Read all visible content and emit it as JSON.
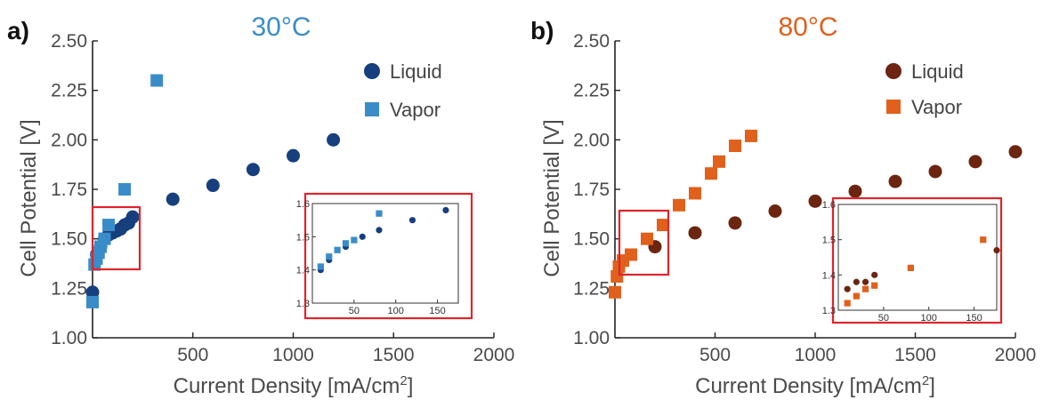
{
  "chart_data": [
    {
      "type": "scatter",
      "panel_label": "a)",
      "title": "30°C",
      "title_color": "#3a8cc8",
      "xlabel": "Current Density [mA/cm",
      "xlabel_sup": "2",
      "xlabel_end": "]",
      "ylabel": "Cell Potential [V]",
      "xlim": [
        0,
        2000
      ],
      "ylim": [
        1.0,
        2.5
      ],
      "xticks": [
        "500",
        "1000",
        "1500",
        "2000"
      ],
      "yticks": [
        "1.00",
        "1.25",
        "1.50",
        "1.75",
        "2.00",
        "2.25",
        "2.50"
      ],
      "legend_position": "top-right",
      "series": [
        {
          "name": "Liquid",
          "marker": "circle",
          "color": "#173f7e",
          "x": [
            0,
            20,
            40,
            60,
            80,
            100,
            120,
            140,
            160,
            180,
            200,
            400,
            600,
            800,
            1000,
            1200
          ],
          "y": [
            1.23,
            1.42,
            1.46,
            1.5,
            1.52,
            1.53,
            1.54,
            1.55,
            1.57,
            1.58,
            1.61,
            1.7,
            1.77,
            1.85,
            1.92,
            2.0
          ]
        },
        {
          "name": "Vapor",
          "marker": "square",
          "color": "#3a8cc8",
          "x": [
            0,
            10,
            20,
            30,
            40,
            60,
            80,
            160,
            320
          ],
          "y": [
            1.18,
            1.37,
            1.4,
            1.43,
            1.46,
            1.5,
            1.57,
            1.75,
            2.3
          ]
        }
      ],
      "inset": {
        "xlim": [
          0,
          175
        ],
        "ylim": [
          1.3,
          1.6
        ],
        "xticks": [
          "50",
          "100",
          "150"
        ],
        "yticks": [
          "1.3",
          "1.4",
          "1.5",
          "1.6"
        ],
        "series": [
          {
            "name": "Liquid",
            "x": [
              10,
              20,
              40,
              60,
              80,
              120,
              160
            ],
            "y": [
              1.4,
              1.43,
              1.47,
              1.5,
              1.52,
              1.55,
              1.58
            ]
          },
          {
            "name": "Vapor",
            "x": [
              10,
              20,
              30,
              40,
              50,
              80
            ],
            "y": [
              1.41,
              1.44,
              1.46,
              1.48,
              1.49,
              1.57
            ]
          }
        ]
      }
    },
    {
      "type": "scatter",
      "panel_label": "b)",
      "title": "80°C",
      "title_color": "#e0601c",
      "xlabel": "Current Density [mA/cm",
      "xlabel_sup": "2",
      "xlabel_end": "]",
      "ylabel": "Cell Potential [V]",
      "xlim": [
        0,
        2000
      ],
      "ylim": [
        1.0,
        2.5
      ],
      "xticks": [
        "500",
        "1000",
        "1500",
        "2000"
      ],
      "yticks": [
        "1.00",
        "1.25",
        "1.50",
        "1.75",
        "2.00",
        "2.25",
        "2.50"
      ],
      "legend_position": "top-right",
      "series": [
        {
          "name": "Liquid",
          "marker": "circle",
          "color": "#6b2510",
          "x": [
            200,
            400,
            600,
            800,
            1000,
            1200,
            1400,
            1600,
            1800,
            2000
          ],
          "y": [
            1.46,
            1.53,
            1.58,
            1.64,
            1.69,
            1.74,
            1.79,
            1.84,
            1.89,
            1.94
          ]
        },
        {
          "name": "Vapor",
          "marker": "square",
          "color": "#e0601c",
          "x": [
            0,
            10,
            20,
            40,
            80,
            160,
            240,
            320,
            400,
            480,
            520,
            600,
            680
          ],
          "y": [
            1.23,
            1.31,
            1.36,
            1.39,
            1.42,
            1.5,
            1.57,
            1.67,
            1.73,
            1.83,
            1.89,
            1.97,
            2.02
          ]
        }
      ],
      "inset": {
        "xlim": [
          0,
          175
        ],
        "ylim": [
          1.3,
          1.6
        ],
        "xticks": [
          "50",
          "100",
          "150"
        ],
        "yticks": [
          "1.3",
          "1.4",
          "1.5",
          "1.6"
        ],
        "series": [
          {
            "name": "Liquid",
            "x": [
              10,
              20,
              30,
              40,
              175
            ],
            "y": [
              1.36,
              1.38,
              1.38,
              1.4,
              1.47
            ]
          },
          {
            "name": "Vapor",
            "x": [
              10,
              20,
              30,
              40,
              80,
              160
            ],
            "y": [
              1.32,
              1.34,
              1.36,
              1.37,
              1.42,
              1.5
            ]
          }
        ]
      }
    }
  ]
}
